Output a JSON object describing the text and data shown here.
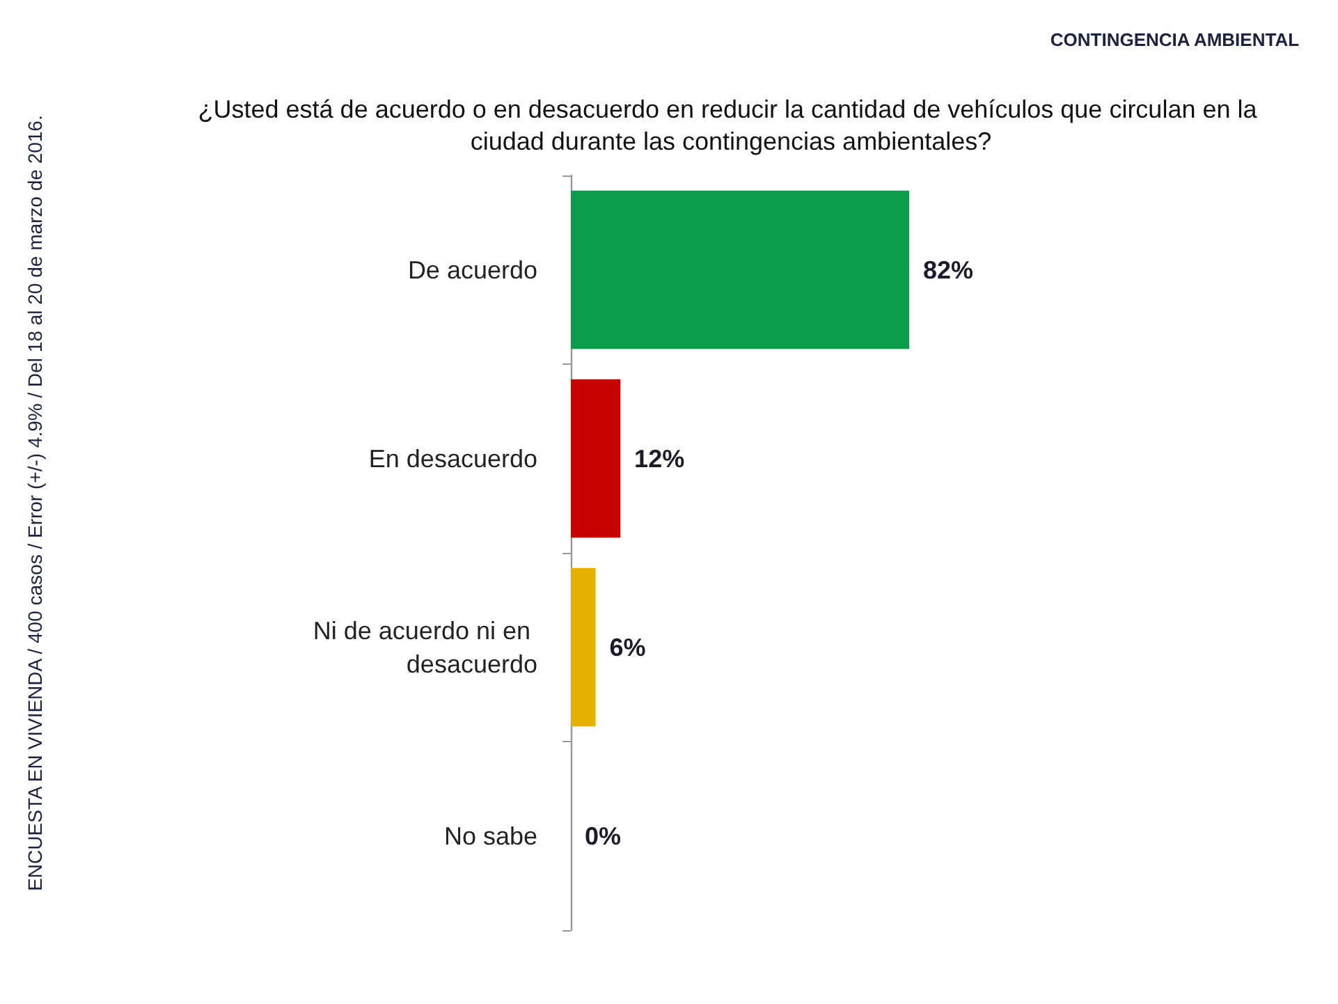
{
  "chart_data": {
    "type": "bar",
    "orientation": "horizontal",
    "title": "¿Usted está de acuerdo o en desacuerdo en reducir la cantidad de vehículos que circulan en la ciudad durante las contingencias ambientales?",
    "subtitle": "CONTINGENCIA AMBIENTAL",
    "categories": [
      "De acuerdo",
      "En desacuerdo",
      "Ni de acuerdo ni en desacuerdo",
      "No sabe"
    ],
    "values": [
      82,
      12,
      6,
      0
    ],
    "colors": [
      "#0b9b4b",
      "#c80000",
      "#e6b000",
      "#000000"
    ],
    "value_labels": [
      "82%",
      "12%",
      "6%",
      "0%"
    ],
    "tick_labels": "y",
    "annotations": [
      "ENCUESTA EN VIVIENDA / 400 casos / Error (+/-) 4.9% / Del 18 al 20 de marzo de 2016."
    ]
  }
}
